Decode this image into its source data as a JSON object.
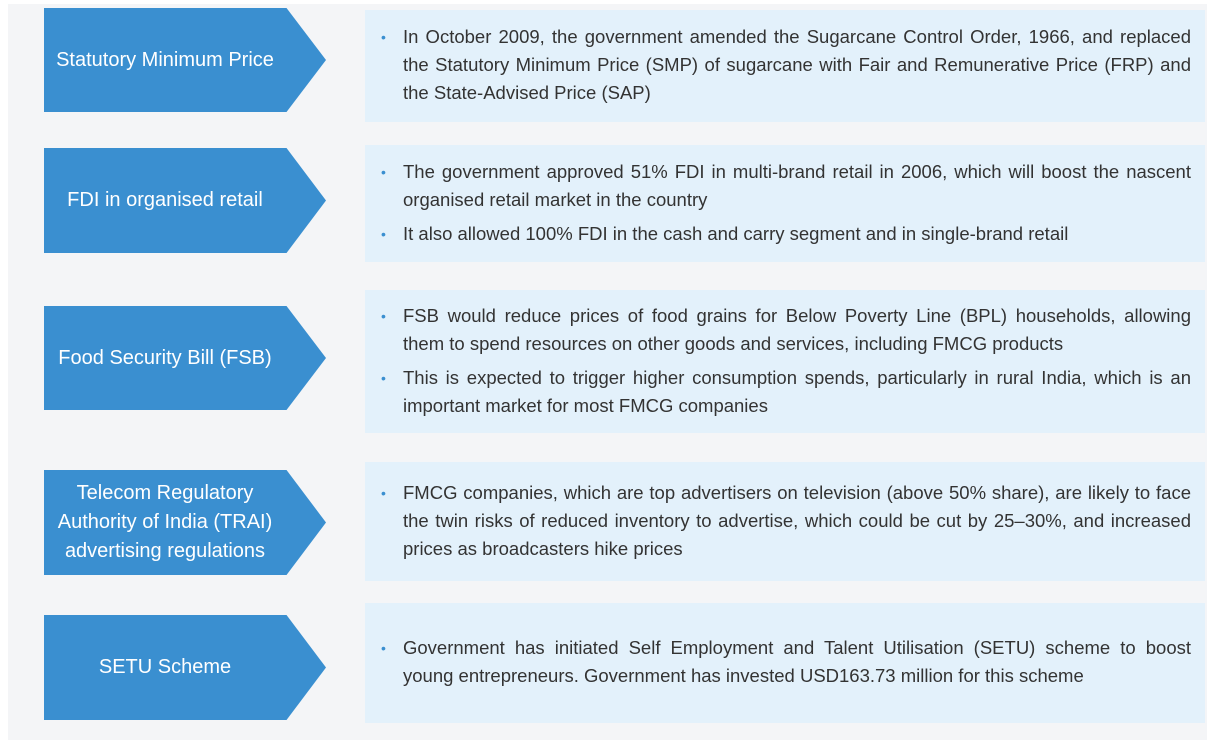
{
  "rows": [
    {
      "label": "Statutory Minimum Price",
      "bullets": [
        "In October 2009, the government amended the Sugarcane Control Order, 1966, and replaced the Statutory Minimum Price (SMP) of sugarcane with Fair and Remunerative Price (FRP) and the State-Advised Price (SAP)"
      ]
    },
    {
      "label": "FDI in organised retail",
      "bullets": [
        "The government approved 51% FDI in multi-brand retail in 2006, which will boost the nascent organised retail market in the country",
        "It also allowed 100% FDI in the cash and carry segment and in single-brand retail"
      ]
    },
    {
      "label": "Food Security Bill (FSB)",
      "bullets": [
        "FSB would reduce prices of food grains for Below Poverty Line (BPL) households, allowing them to spend resources on other goods and services, including FMCG products",
        "This is expected to trigger higher consumption spends, particularly in rural India, which is an important market for most FMCG companies"
      ]
    },
    {
      "label": "Telecom Regulatory Authority of India (TRAI) advertising regulations",
      "bullets": [
        "FMCG companies, which are top advertisers on television (above 50% share), are likely to face the twin risks of reduced inventory to advertise, which could be cut by 25–30%, and increased prices as broadcasters hike prices"
      ]
    },
    {
      "label": "SETU Scheme",
      "bullets": [
        "Government has initiated Self Employment and Talent Utilisation (SETU) scheme to boost young entrepreneurs. Government has invested USD163.73 million for this scheme"
      ]
    }
  ]
}
